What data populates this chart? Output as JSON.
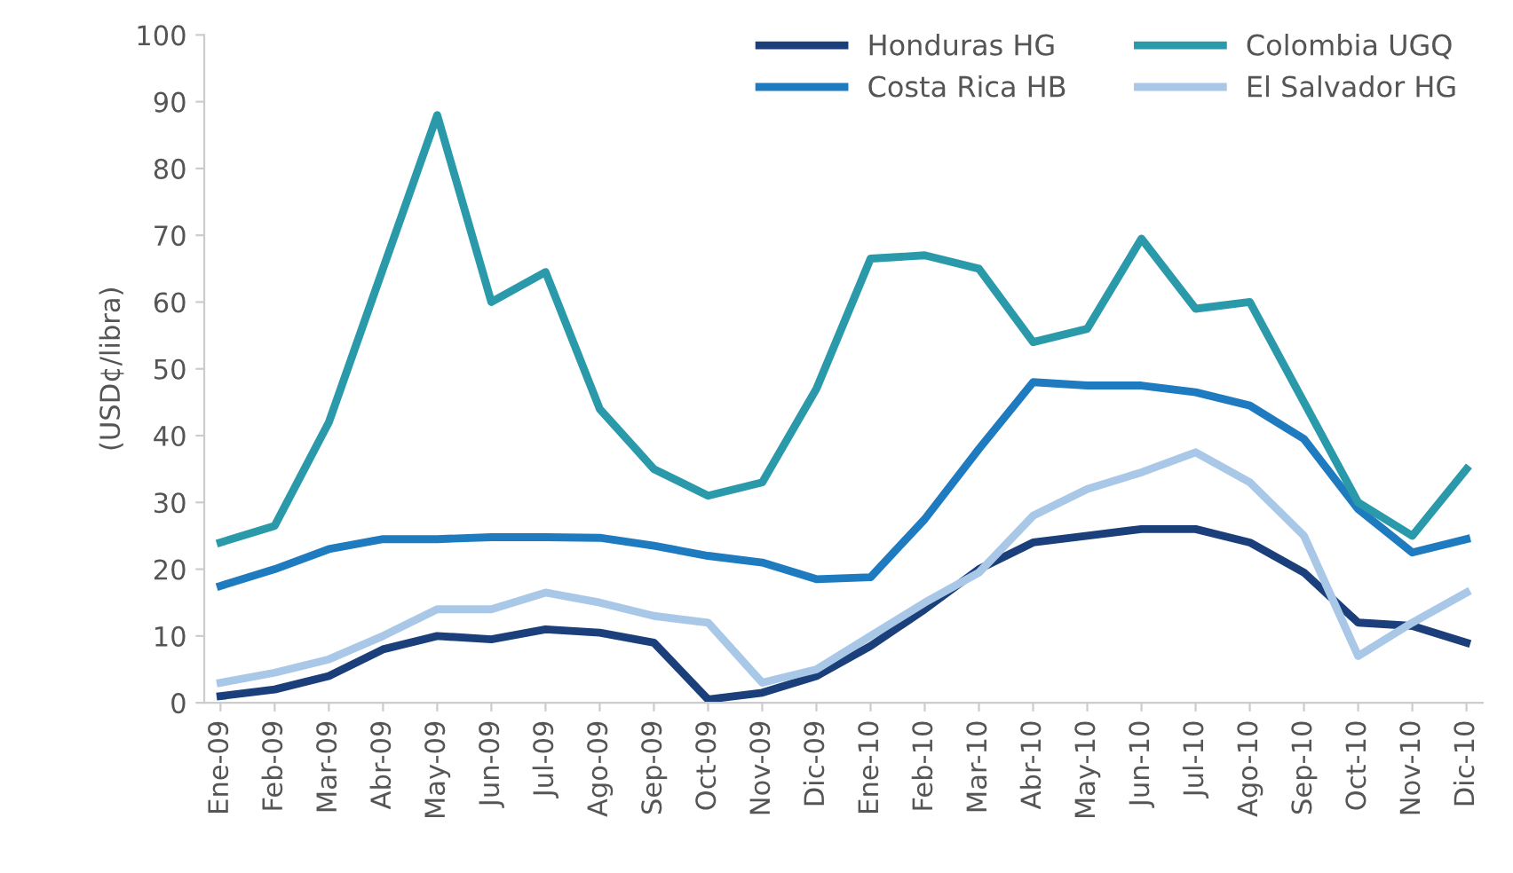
{
  "chart_data": {
    "type": "line",
    "ylabel": "(USD¢/libra)",
    "categories": [
      "Ene-09",
      "Feb-09",
      "Mar-09",
      "Abr-09",
      "May-09",
      "Jun-09",
      "Jul-09",
      "Ago-09",
      "Sep-09",
      "Oct-09",
      "Nov-09",
      "Dic-09",
      "Ene-10",
      "Feb-10",
      "Mar-10",
      "Abr-10",
      "May-10",
      "Jun-10",
      "Jul-10",
      "Ago-10",
      "Sep-10",
      "Oct-10",
      "Nov-10",
      "Dic-10"
    ],
    "series": [
      {
        "name": "Honduras HG",
        "color": "#1a3f7a",
        "values": [
          1,
          2,
          4,
          8,
          10,
          9.5,
          11,
          10.5,
          9,
          0.5,
          1.5,
          4,
          8.5,
          14,
          20,
          24,
          25,
          26,
          26,
          24,
          19.5,
          12,
          11.5,
          9
        ]
      },
      {
        "name": "Costa Rica HB",
        "color": "#1f7bc0",
        "values": [
          17.5,
          20,
          23,
          24.5,
          24.5,
          24.8,
          24.8,
          24.7,
          23.5,
          22,
          21,
          18.5,
          18.8,
          27.5,
          38,
          48,
          47.5,
          47.5,
          46.5,
          44.5,
          39.5,
          29,
          22.5,
          24.5
        ]
      },
      {
        "name": "Colombia UGQ",
        "color": "#2a9aab",
        "values": [
          24,
          26.5,
          42,
          65,
          88,
          60,
          64.5,
          44,
          35,
          31,
          33,
          47,
          66.5,
          67,
          65,
          54,
          56,
          69.5,
          59,
          60,
          45,
          30,
          25,
          35
        ]
      },
      {
        "name": "El Salvador HG",
        "color": "#a9c8e8",
        "values": [
          3,
          4.5,
          6.5,
          10,
          14,
          14,
          16.5,
          15,
          13,
          12,
          3,
          5,
          10,
          15,
          19.5,
          28,
          32,
          34.5,
          37.5,
          33,
          25,
          7,
          12,
          16.5
        ]
      }
    ],
    "ylim": [
      0,
      100
    ],
    "yticks": [
      0,
      10,
      20,
      30,
      40,
      50,
      60,
      70,
      80,
      90,
      100
    ],
    "grid": false,
    "legend": "top right",
    "line_style": "solid",
    "marker": "none"
  }
}
